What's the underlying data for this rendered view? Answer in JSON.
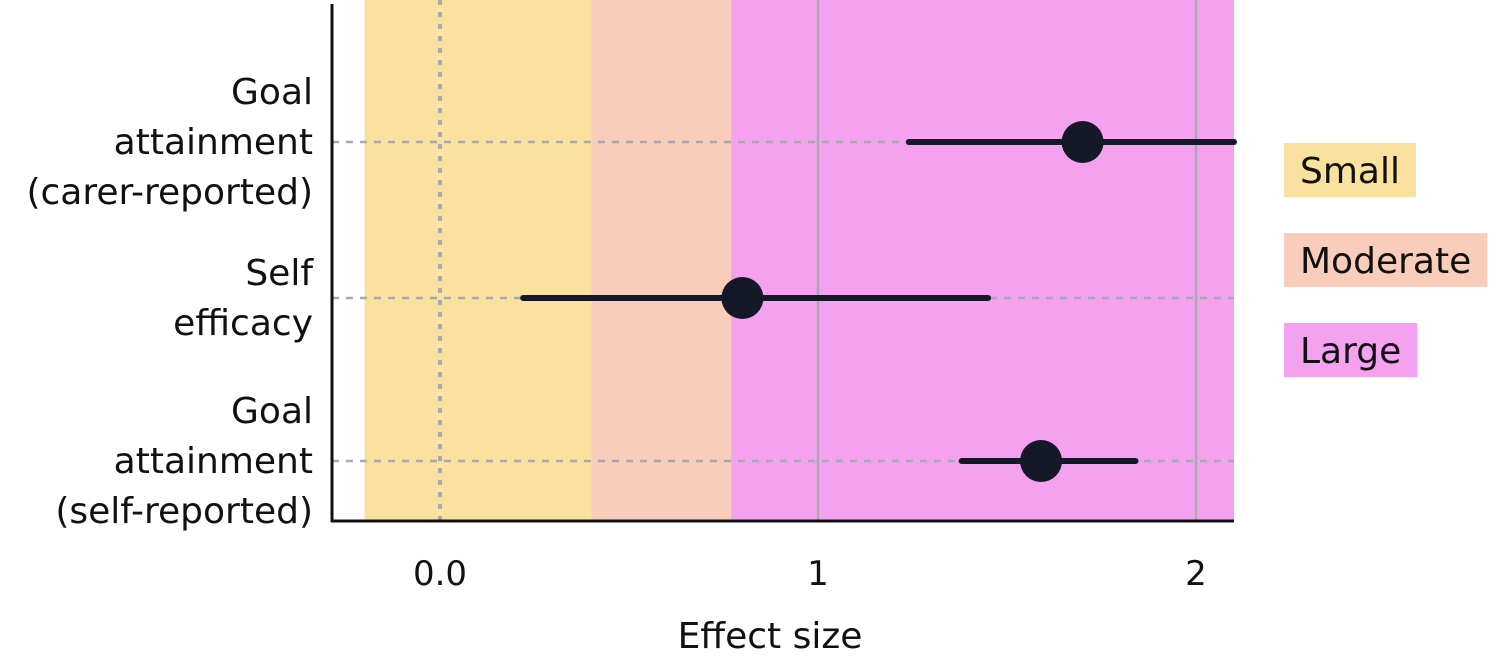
{
  "chart_data": {
    "type": "forest",
    "xlabel": "Effect size",
    "ylabel": "",
    "title": "",
    "xlim": [
      -0.32,
      2.2
    ],
    "x_ticks": [
      {
        "value": 0.0,
        "label": "0.0"
      },
      {
        "value": 1,
        "label": "1"
      },
      {
        "value": 2,
        "label": "2"
      }
    ],
    "reference_line": 0.0,
    "grid": "vertical lines at 1 and 2",
    "categories": [
      {
        "label_lines": [
          "Goal",
          "attainment",
          "(carer-reported)"
        ],
        "estimate": 1.7,
        "ci": [
          1.24,
          2.2
        ]
      },
      {
        "label_lines": [
          "Self",
          "efficacy"
        ],
        "estimate": 0.8,
        "ci": [
          0.22,
          1.45
        ]
      },
      {
        "label_lines": [
          "Goal",
          "attainment",
          "(self-reported)"
        ],
        "estimate": 1.59,
        "ci": [
          1.38,
          1.84
        ]
      }
    ],
    "bands": [
      {
        "name": "Small",
        "from": -0.2,
        "to": 0.4,
        "color": "#fbe19f"
      },
      {
        "name": "Moderate",
        "from": 0.4,
        "to": 0.77,
        "color": "#f9ccbb"
      },
      {
        "name": "Large",
        "from": 0.77,
        "to": 2.2,
        "color": "#f4a2f0"
      }
    ],
    "legend_position": "right"
  },
  "colors": {
    "point": "#141827",
    "axis": "#111111",
    "grid": "#a9a9b2",
    "row_dash": "#a9a9b2"
  }
}
